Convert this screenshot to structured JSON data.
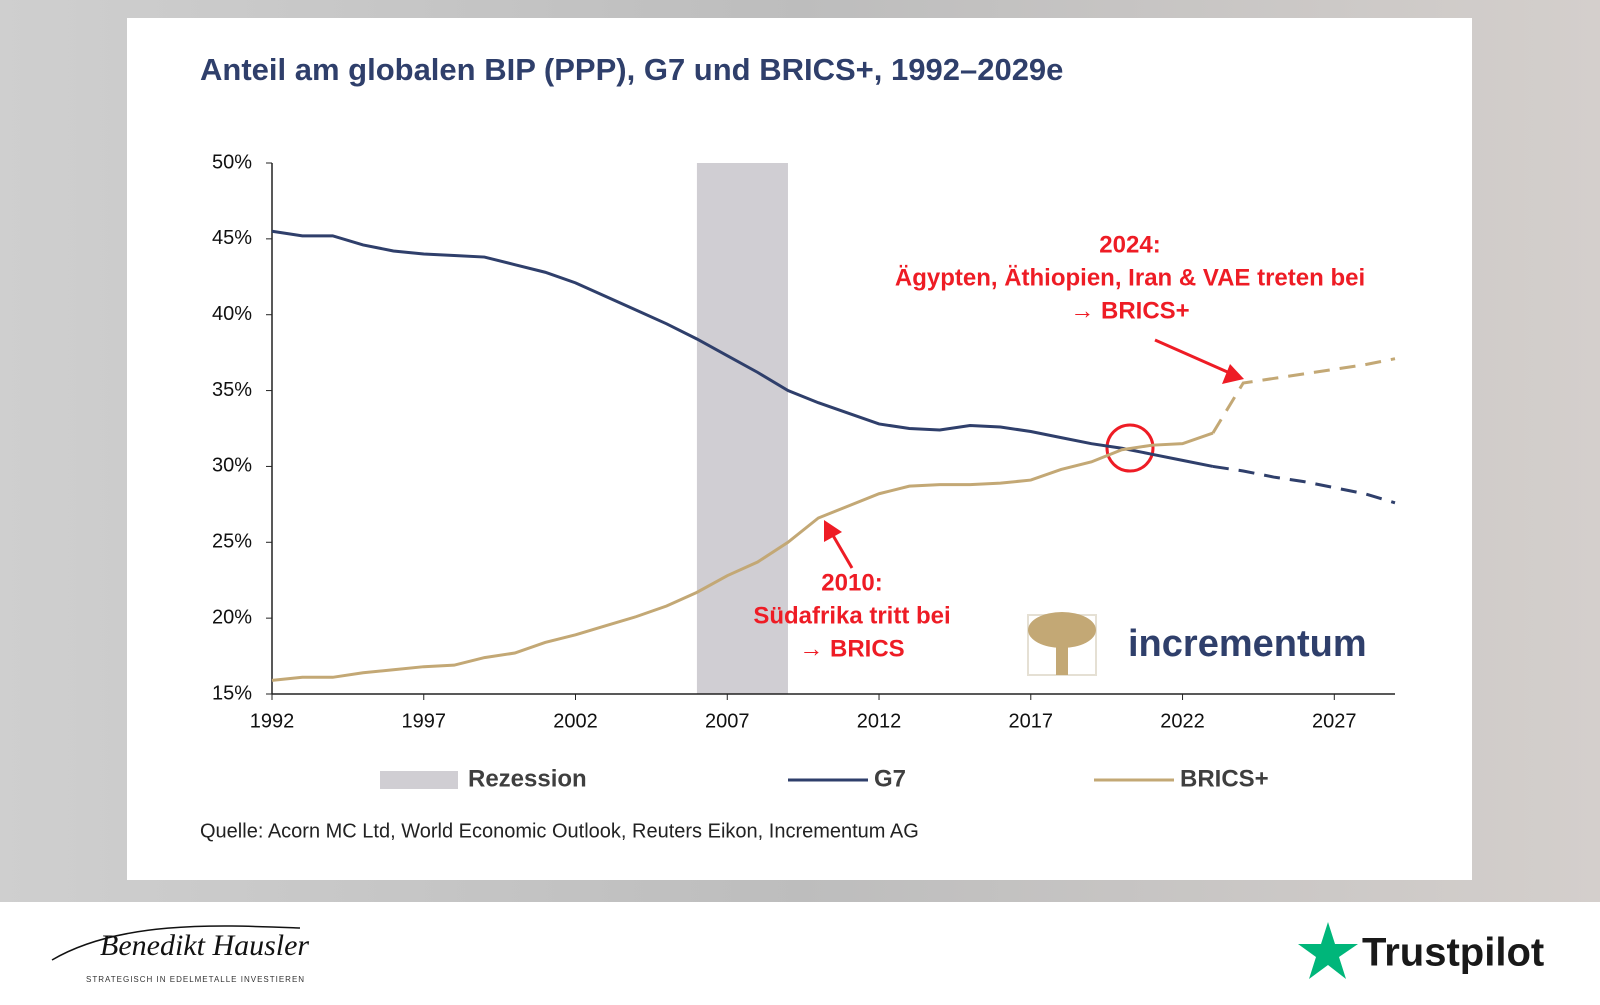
{
  "chart_data": {
    "type": "line",
    "title": "Anteil am globalen BIP (PPP), G7 und BRICS+, 1992–2029e",
    "x": [
      1992,
      1993,
      1994,
      1995,
      1996,
      1997,
      1998,
      1999,
      2000,
      2001,
      2002,
      2003,
      2004,
      2005,
      2006,
      2007,
      2008,
      2009,
      2010,
      2011,
      2012,
      2013,
      2014,
      2015,
      2016,
      2017,
      2018,
      2019,
      2020,
      2021,
      2022,
      2023,
      2024,
      2025,
      2026,
      2027,
      2028,
      2029
    ],
    "series": [
      {
        "name": "G7",
        "color": "#2f3f6b",
        "values": [
          45.5,
          45.2,
          45.2,
          44.6,
          44.2,
          44.0,
          43.9,
          43.8,
          43.3,
          42.8,
          42.1,
          41.2,
          40.3,
          39.4,
          38.4,
          37.3,
          36.2,
          35.0,
          34.2,
          33.5,
          32.8,
          32.5,
          32.4,
          32.7,
          32.6,
          32.3,
          31.9,
          31.5,
          31.2,
          30.8,
          30.4,
          30.0,
          29.7,
          29.3,
          29.0,
          28.6,
          28.2,
          27.6
        ]
      },
      {
        "name": "BRICS+",
        "color": "#c3a875",
        "values": [
          15.9,
          16.1,
          16.1,
          16.4,
          16.6,
          16.8,
          16.9,
          17.4,
          17.7,
          18.4,
          18.9,
          19.5,
          20.1,
          20.8,
          21.7,
          22.8,
          23.7,
          25.0,
          26.6,
          27.4,
          28.2,
          28.7,
          28.8,
          28.8,
          28.9,
          29.1,
          29.8,
          30.3,
          31.1,
          31.4,
          31.5,
          32.2,
          35.5,
          35.8,
          36.1,
          36.4,
          36.7,
          37.1
        ]
      }
    ],
    "dashed_from_x": 2023,
    "shaded": [
      {
        "name": "Rezession",
        "x0": 2006,
        "x1": 2009,
        "color": "#d0ced3"
      }
    ],
    "xlim": [
      1992,
      2029
    ],
    "xticks": [
      1992,
      1997,
      2002,
      2007,
      2012,
      2017,
      2022,
      2027
    ],
    "ylim": [
      15,
      50
    ],
    "yticks": [
      {
        "value": 15,
        "label": "15%"
      },
      {
        "value": 20,
        "label": "20%"
      },
      {
        "value": 25,
        "label": "25%"
      },
      {
        "value": 30,
        "label": "30%"
      },
      {
        "value": 35,
        "label": "35%"
      },
      {
        "value": 40,
        "label": "40%"
      },
      {
        "value": 45,
        "label": "45%"
      },
      {
        "value": 50,
        "label": "50%"
      }
    ],
    "grid": false,
    "annotations": [
      {
        "lines": [
          "2024:",
          "Ägypten, Äthiopien, Iran & VAE treten bei",
          "→ BRICS+"
        ],
        "color": "#ee1c25"
      },
      {
        "lines": [
          "2010:",
          "Südafrika tritt bei",
          "→ BRICS"
        ],
        "color": "#ee1c25"
      }
    ],
    "source": "Quelle: Acorn MC Ltd, World Economic Outlook, Reuters Eikon, Incrementum AG",
    "logo": "incrementum"
  },
  "footer": {
    "signature": "Benedikt Hausler",
    "slogan": "STRATEGISCH IN EDELMETALLE INVESTIEREN",
    "brand": "Trustpilot"
  }
}
